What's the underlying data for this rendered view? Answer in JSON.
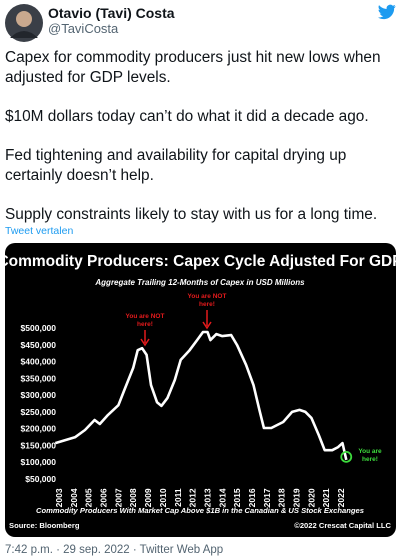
{
  "tweet": {
    "name": "Otavio (Tavi) Costa",
    "handle": "@TaviCosta",
    "paragraphs": [
      "Capex for commodity producers just hit new lows when adjusted for GDP levels.",
      "$10M dollars today can’t do what it did a decade ago.",
      "Fed tightening and availability for capital drying up certainly doesn’t help.",
      "Supply constraints likely to stay with us for a long time."
    ],
    "translate": "Tweet vertalen",
    "footer": "7:42 p.m. · 29 sep. 2022 · Twitter Web App"
  },
  "chart_data": {
    "type": "line",
    "title": "Commodity Producers: Capex Cycle Adjusted For GDP",
    "subtitle": "Aggregate Trailing 12-Months of Capex in USD Millions",
    "caption": "Commodity Producers With Market Cap Above $1B in the Canadian & US Stock Exchanges",
    "source": "Source: Bloomberg",
    "credit": "©2022 Crescat Capital LLC",
    "color": "#ffffff",
    "x": [
      2002.75,
      2004.1,
      2004.75,
      2005.4,
      2005.75,
      2006.3,
      2007.0,
      2007.4,
      2008.0,
      2008.3,
      2008.6,
      2008.9,
      2009.2,
      2009.6,
      2009.9,
      2010.3,
      2010.8,
      2011.2,
      2011.8,
      2012.3,
      2012.7,
      2013.0,
      2013.2,
      2013.6,
      2014.0,
      2014.6,
      2015.0,
      2015.6,
      2016.1,
      2016.5,
      2016.8,
      2017.3,
      2017.7,
      2018.1,
      2018.7,
      2019.2,
      2019.6,
      2020.0,
      2020.5,
      2020.9,
      2021.4,
      2021.8,
      2022.1,
      2022.35
    ],
    "values": [
      157000,
      175000,
      196000,
      226000,
      214000,
      241000,
      270000,
      315000,
      381000,
      434000,
      440000,
      420000,
      330000,
      279000,
      268000,
      291000,
      345000,
      405000,
      434000,
      464000,
      488000,
      488000,
      464000,
      482000,
      476000,
      479000,
      449000,
      390000,
      330000,
      256000,
      202000,
      202000,
      211000,
      220000,
      250000,
      256000,
      250000,
      232000,
      181000,
      136000,
      136000,
      145000,
      157000,
      107000
    ],
    "xlim": [
      2002.75,
      2022.4
    ],
    "xticks": [
      2003,
      2004,
      2005,
      2006,
      2007,
      2008,
      2009,
      2010,
      2011,
      2012,
      2013,
      2014,
      2015,
      2016,
      2017,
      2018,
      2019,
      2020,
      2021,
      2022
    ],
    "ylim": [
      25000,
      585000
    ],
    "yticks": [
      {
        "value": 50000,
        "label": "$50,000"
      },
      {
        "value": 100000,
        "label": "$100,000"
      },
      {
        "value": 150000,
        "label": "$150,000"
      },
      {
        "value": 200000,
        "label": "$200,000"
      },
      {
        "value": 250000,
        "label": "$250,000"
      },
      {
        "value": 300000,
        "label": "$300,000"
      },
      {
        "value": 350000,
        "label": "$350,000"
      },
      {
        "value": 400000,
        "label": "$400,000"
      },
      {
        "value": 450000,
        "label": "$450,000"
      },
      {
        "value": 500000,
        "label": "$500,000"
      }
    ],
    "annotations": [
      [
        "You are NOT",
        "here!"
      ],
      [
        "You are NOT",
        "here!"
      ],
      [
        "You are",
        "here!"
      ]
    ]
  }
}
